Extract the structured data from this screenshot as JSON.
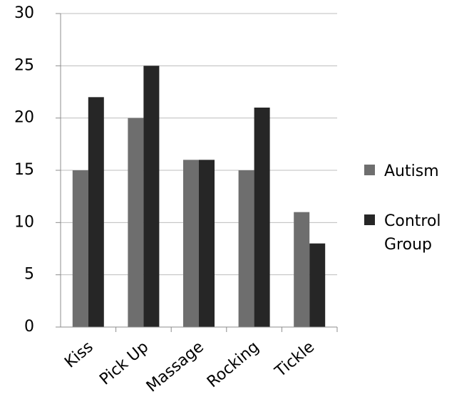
{
  "chart_data": {
    "type": "bar",
    "title": "",
    "xlabel": "",
    "ylabel": "",
    "categories": [
      "Kiss",
      "Pick Up",
      "Massage",
      "Rocking",
      "Tickle"
    ],
    "series": [
      {
        "name": "Autism",
        "values": [
          15,
          20,
          16,
          15,
          11
        ],
        "color": "#6e6e6e"
      },
      {
        "name": "Control Group",
        "values": [
          22,
          25,
          16,
          21,
          8
        ],
        "color": "#262626"
      }
    ],
    "ylim": [
      0,
      30
    ],
    "yticks": [
      0,
      5,
      10,
      15,
      20,
      25,
      30
    ],
    "grid": true,
    "legend_position": "right",
    "legend_labels": [
      {
        "lines": [
          "Autism"
        ]
      },
      {
        "lines": [
          "Control",
          "Group"
        ]
      }
    ]
  }
}
